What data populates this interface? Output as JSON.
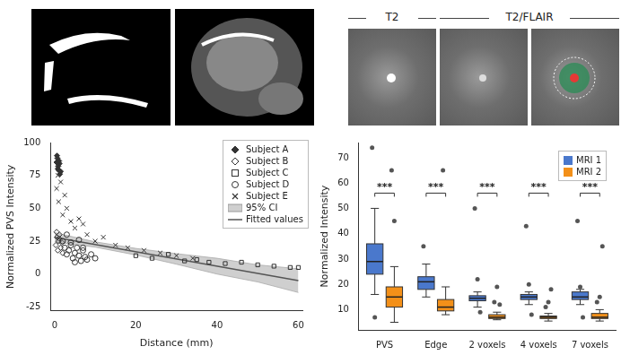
{
  "image_panels": {
    "headers": [
      "T2",
      "T2/FLAIR"
    ]
  },
  "chart_data": [
    {
      "type": "scatter",
      "x_label": "Distance (mm)",
      "y_label": "Normalized PVS Intensity",
      "xlim": [
        -1,
        61
      ],
      "xticks": [
        0,
        20,
        40,
        60
      ],
      "ylim": [
        -28,
        100
      ],
      "yticks": [
        -25,
        0,
        25,
        50,
        75,
        100
      ],
      "grid": false,
      "legend": "upper right",
      "series": [
        {
          "name": "Subject A",
          "color": "#333333",
          "marker": "diamond",
          "x": [
            0.5,
            0.7,
            0.9,
            1.0,
            1.2,
            1.3,
            0.6,
            0.8,
            1.1,
            1.5
          ],
          "values": [
            85,
            88,
            82,
            79,
            84,
            76,
            90,
            80,
            86,
            78
          ]
        },
        {
          "name": "Subject B",
          "color": "#333333",
          "marker": "diamond-open",
          "x": [
            0.3,
            0.6,
            0.8,
            1.0,
            1.2,
            1.5,
            1.8,
            2.0,
            0.5,
            1.1
          ],
          "values": [
            22,
            28,
            18,
            25,
            30,
            20,
            24,
            16,
            32,
            27
          ]
        },
        {
          "name": "Subject C",
          "color": "#333333",
          "marker": "square-open",
          "x": [
            20,
            24,
            28,
            32,
            35,
            38,
            42,
            46,
            50,
            54,
            58,
            60
          ],
          "values": [
            14,
            12,
            15,
            10,
            11,
            9,
            8,
            9,
            7,
            6,
            5,
            5
          ]
        },
        {
          "name": "Subject D",
          "color": "#333333",
          "marker": "circle-open",
          "x": [
            2,
            2.5,
            3,
            3.5,
            4,
            4.5,
            5,
            5.5,
            6,
            6.5,
            7,
            7.5,
            8,
            9,
            10,
            3,
            4,
            5,
            6,
            7
          ],
          "values": [
            25,
            20,
            15,
            18,
            22,
            12,
            16,
            20,
            14,
            10,
            18,
            13,
            11,
            15,
            12,
            30,
            24,
            9,
            26,
            20
          ]
        },
        {
          "name": "Subject E",
          "color": "#333333",
          "marker": "x",
          "x": [
            0.5,
            1,
            1.5,
            2,
            3,
            4,
            5,
            6,
            8,
            10,
            12,
            15,
            18,
            22,
            26,
            30,
            34,
            0.8,
            2.5,
            7
          ],
          "values": [
            65,
            55,
            70,
            45,
            50,
            40,
            35,
            42,
            30,
            25,
            28,
            22,
            20,
            18,
            16,
            14,
            12,
            75,
            60,
            38
          ]
        },
        {
          "name": "95% CI",
          "type": "area",
          "color": "#cfcfcf",
          "x": [
            0,
            10,
            20,
            30,
            40,
            50,
            60
          ],
          "lower": [
            24.5,
            20.5,
            14.5,
            7.5,
            0,
            -6,
            -14
          ],
          "upper": [
            31.5,
            24.5,
            19.5,
            15.5,
            12,
            7,
            4
          ]
        },
        {
          "name": "Fitted values",
          "type": "line",
          "color": "#555555",
          "line_style": "solid",
          "x": [
            0,
            60
          ],
          "values": [
            28,
            -5
          ]
        }
      ]
    },
    {
      "type": "boxplot",
      "y_label": "Normalized Intensity",
      "categories": [
        "PVS",
        "Edge",
        "2 voxels",
        "4 voxels",
        "7 voxels"
      ],
      "ylim": [
        2,
        76
      ],
      "yticks": [
        10,
        20,
        30,
        40,
        50,
        60,
        70
      ],
      "grid": false,
      "legend": "upper right",
      "annotations": [
        "***",
        "***",
        "***",
        "***",
        "***"
      ],
      "series": [
        {
          "name": "MRI 1",
          "color": "#4a78cc",
          "boxes": [
            {
              "min": 16,
              "q1": 24,
              "median": 29,
              "q3": 36,
              "max": 50,
              "outliers": [
                74,
                7
              ]
            },
            {
              "min": 15,
              "q1": 18,
              "median": 21,
              "q3": 23,
              "max": 28,
              "outliers": [
                35
              ]
            },
            {
              "min": 11,
              "q1": 13.5,
              "median": 14.5,
              "q3": 15.5,
              "max": 17,
              "outliers": [
                50,
                22,
                9
              ]
            },
            {
              "min": 12,
              "q1": 14,
              "median": 15,
              "q3": 16,
              "max": 17,
              "outliers": [
                43,
                20,
                8
              ]
            },
            {
              "min": 12,
              "q1": 14,
              "median": 15,
              "q3": 17,
              "max": 18,
              "outliers": [
                45,
                19,
                7
              ]
            }
          ]
        },
        {
          "name": "MRI 2",
          "color": "#f39019",
          "boxes": [
            {
              "min": 5,
              "q1": 11,
              "median": 15,
              "q3": 19,
              "max": 27,
              "outliers": [
                65,
                45
              ]
            },
            {
              "min": 8,
              "q1": 9.5,
              "median": 11,
              "q3": 14,
              "max": 19,
              "outliers": [
                65
              ]
            },
            {
              "min": 6,
              "q1": 6.5,
              "median": 7,
              "q3": 8,
              "max": 9,
              "outliers": [
                13,
                19,
                12
              ]
            },
            {
              "min": 5.5,
              "q1": 6.5,
              "median": 7,
              "q3": 7.5,
              "max": 8.5,
              "outliers": [
                11,
                13,
                18
              ]
            },
            {
              "min": 5.5,
              "q1": 6.5,
              "median": 7,
              "q3": 8.5,
              "max": 10,
              "outliers": [
                13,
                15,
                35
              ]
            }
          ]
        }
      ]
    }
  ]
}
